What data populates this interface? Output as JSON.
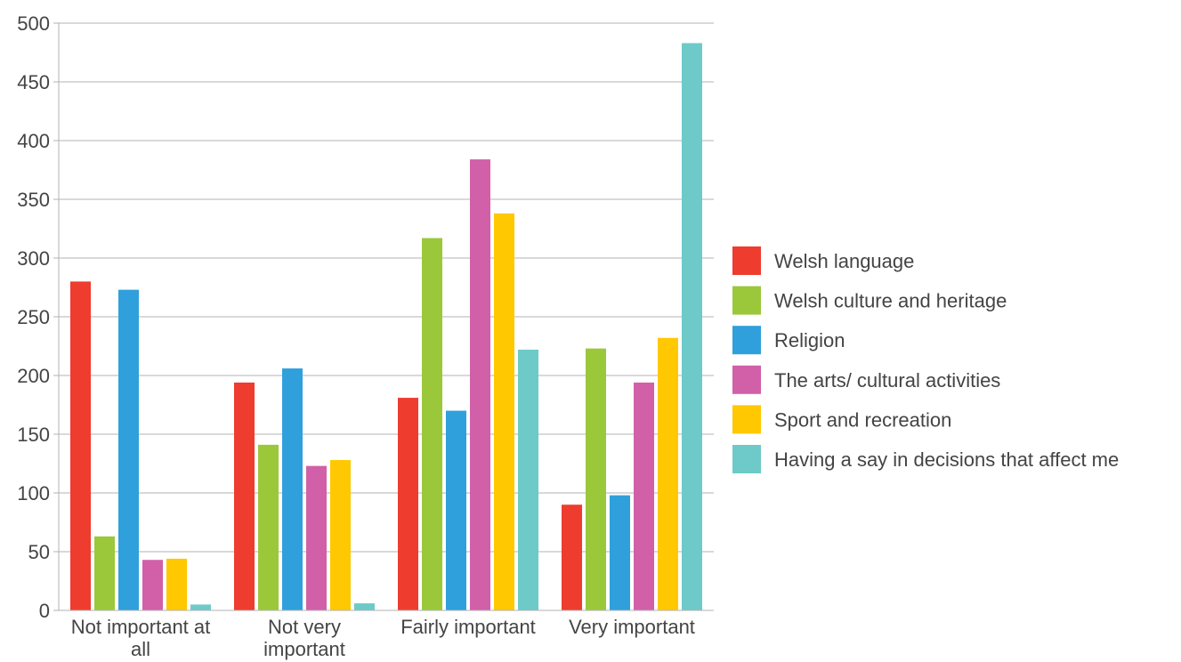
{
  "chart_data": {
    "type": "bar",
    "title": "",
    "xlabel": "",
    "ylabel": "",
    "ylim": [
      0,
      500
    ],
    "yticks": [
      0,
      50,
      100,
      150,
      200,
      250,
      300,
      350,
      400,
      450,
      500
    ],
    "grid": true,
    "legend_position": "right",
    "categories": [
      [
        "Not important at",
        "all"
      ],
      [
        "Not very",
        "important"
      ],
      [
        "Fairly important"
      ],
      [
        "Very important"
      ]
    ],
    "series": [
      {
        "name": "Welsh language",
        "color": "#ee3c2f",
        "values": [
          280,
          194,
          181,
          90
        ]
      },
      {
        "name": "Welsh culture and heritage",
        "color": "#9bc83b",
        "values": [
          63,
          141,
          317,
          223
        ]
      },
      {
        "name": "Religion",
        "color": "#2fa0db",
        "values": [
          273,
          206,
          170,
          98
        ]
      },
      {
        "name": "The arts/ cultural activities",
        "color": "#d160a8",
        "values": [
          43,
          123,
          384,
          194
        ]
      },
      {
        "name": "Sport and recreation",
        "color": "#ffc800",
        "values": [
          44,
          128,
          338,
          232
        ]
      },
      {
        "name": "Having a say in decisions that affect me",
        "color": "#6ecac8",
        "values": [
          5,
          6,
          222,
          483
        ]
      }
    ]
  }
}
